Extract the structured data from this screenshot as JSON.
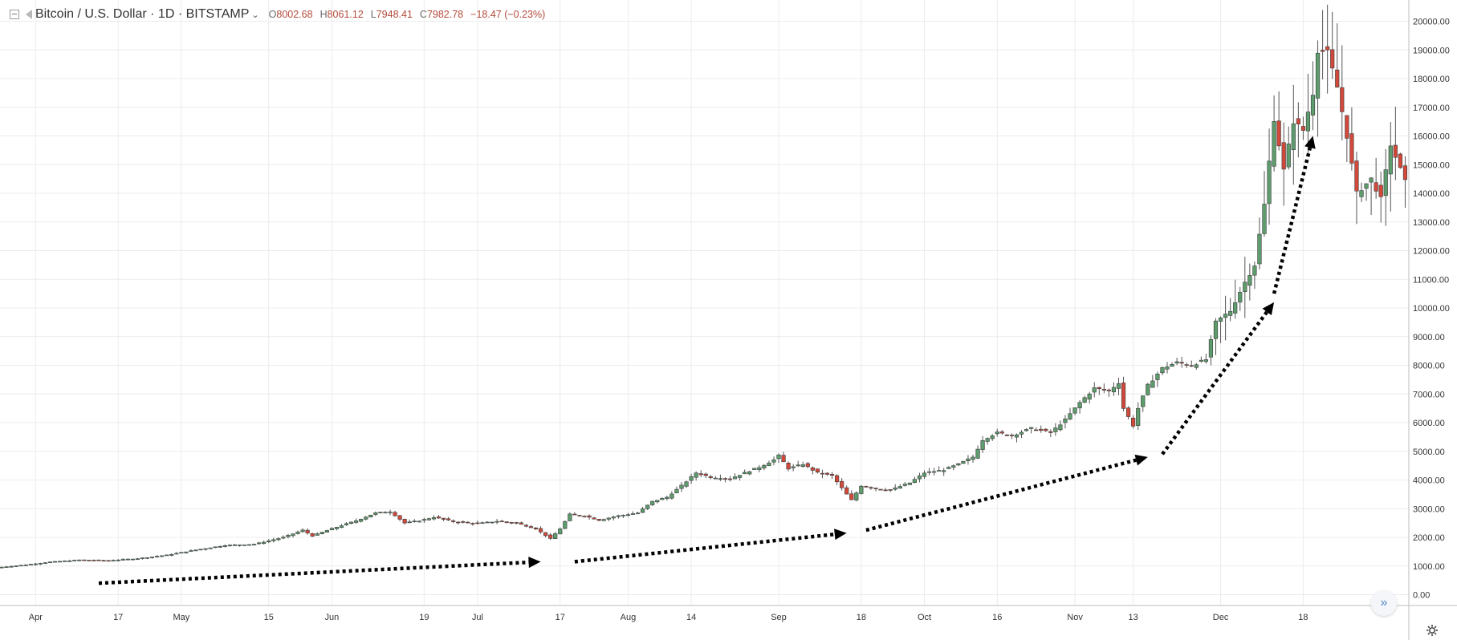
{
  "header": {
    "symbol_title": "Bitcoin / U.S. Dollar · 1D · BITSTAMP",
    "chevron": "⌄",
    "ohlc": [
      {
        "key": "O",
        "value": "8002.68"
      },
      {
        "key": "H",
        "value": "8061.12"
      },
      {
        "key": "L",
        "value": "7948.41"
      },
      {
        "key": "C",
        "value": "7982.78"
      }
    ],
    "change": "−18.47 (−0.23%)"
  },
  "icons": {
    "collapse": "collapse-icon",
    "flag": "flag-icon",
    "scroll": "scroll-to-latest-icon",
    "settings": "gear-icon"
  },
  "scroll_glyph": "»",
  "chart_data": {
    "type": "candlestick",
    "title": "Bitcoin / U.S. Dollar · 1D · BITSTAMP",
    "up_color": "#5d9c6c",
    "down_color": "#d2493b",
    "grid": true,
    "ylim": [
      0,
      20000
    ],
    "y_ticks": [
      "0.00",
      "1000.00",
      "2000.00",
      "3000.00",
      "4000.00",
      "5000.00",
      "6000.00",
      "7000.00",
      "8000.00",
      "9000.00",
      "10000.00",
      "11000.00",
      "12000.00",
      "13000.00",
      "14000.00",
      "15000.00",
      "16000.00",
      "17000.00",
      "18000.00",
      "19000.00",
      "20000.00"
    ],
    "x_ticks": [
      {
        "day": 7,
        "label": "Apr"
      },
      {
        "day": 24,
        "label": "17"
      },
      {
        "day": 37,
        "label": "May"
      },
      {
        "day": 55,
        "label": "15"
      },
      {
        "day": 68,
        "label": "Jun"
      },
      {
        "day": 87,
        "label": "19"
      },
      {
        "day": 98,
        "label": "Jul"
      },
      {
        "day": 115,
        "label": "17"
      },
      {
        "day": 129,
        "label": "Aug"
      },
      {
        "day": 142,
        "label": "14"
      },
      {
        "day": 160,
        "label": "Sep"
      },
      {
        "day": 177,
        "label": "18"
      },
      {
        "day": 190,
        "label": "Oct"
      },
      {
        "day": 205,
        "label": "16"
      },
      {
        "day": 221,
        "label": "Nov"
      },
      {
        "day": 233,
        "label": "13"
      },
      {
        "day": 251,
        "label": "Dec"
      },
      {
        "day": 268,
        "label": "18"
      }
    ],
    "closes": [
      [
        0,
        960
      ],
      [
        5,
        1040
      ],
      [
        10,
        1140
      ],
      [
        16,
        1210
      ],
      [
        22,
        1190
      ],
      [
        28,
        1260
      ],
      [
        34,
        1380
      ],
      [
        40,
        1560
      ],
      [
        46,
        1720
      ],
      [
        52,
        1760
      ],
      [
        58,
        2000
      ],
      [
        62,
        2250
      ],
      [
        64,
        2050
      ],
      [
        68,
        2300
      ],
      [
        73,
        2580
      ],
      [
        77,
        2850
      ],
      [
        80,
        2900
      ],
      [
        83,
        2500
      ],
      [
        86,
        2580
      ],
      [
        89,
        2700
      ],
      [
        93,
        2550
      ],
      [
        98,
        2480
      ],
      [
        102,
        2560
      ],
      [
        106,
        2500
      ],
      [
        110,
        2300
      ],
      [
        113,
        1950
      ],
      [
        115,
        2300
      ],
      [
        117,
        2800
      ],
      [
        120,
        2750
      ],
      [
        123,
        2600
      ],
      [
        127,
        2750
      ],
      [
        131,
        2850
      ],
      [
        134,
        3250
      ],
      [
        137,
        3400
      ],
      [
        140,
        3800
      ],
      [
        143,
        4250
      ],
      [
        146,
        4100
      ],
      [
        150,
        4050
      ],
      [
        153,
        4250
      ],
      [
        156,
        4450
      ],
      [
        159,
        4700
      ],
      [
        160,
        4850
      ],
      [
        162,
        4400
      ],
      [
        165,
        4550
      ],
      [
        168,
        4250
      ],
      [
        171,
        4150
      ],
      [
        174,
        3500
      ],
      [
        175,
        3300
      ],
      [
        177,
        3800
      ],
      [
        180,
        3700
      ],
      [
        183,
        3650
      ],
      [
        187,
        3900
      ],
      [
        190,
        4250
      ],
      [
        194,
        4350
      ],
      [
        197,
        4550
      ],
      [
        200,
        4800
      ],
      [
        202,
        5400
      ],
      [
        205,
        5650
      ],
      [
        208,
        5550
      ],
      [
        212,
        5800
      ],
      [
        216,
        5650
      ],
      [
        219,
        6100
      ],
      [
        222,
        6700
      ],
      [
        225,
        7200
      ],
      [
        228,
        7100
      ],
      [
        230,
        7400
      ],
      [
        231,
        6500
      ],
      [
        233,
        5900
      ],
      [
        234,
        6500
      ],
      [
        236,
        7300
      ],
      [
        239,
        7900
      ],
      [
        242,
        8100
      ],
      [
        245,
        8000
      ],
      [
        248,
        8200
      ],
      [
        250,
        9500
      ],
      [
        253,
        9900
      ],
      [
        256,
        10900
      ],
      [
        258,
        11500
      ],
      [
        260,
        13600
      ],
      [
        262,
        16600
      ],
      [
        264,
        14800
      ],
      [
        266,
        16500
      ],
      [
        268,
        16200
      ],
      [
        270,
        17500
      ],
      [
        271,
        19000
      ],
      [
        273,
        18900
      ],
      [
        275,
        17700
      ],
      [
        277,
        16000
      ],
      [
        279,
        14000
      ],
      [
        282,
        14500
      ],
      [
        284,
        13800
      ],
      [
        286,
        15700
      ],
      [
        289,
        14400
      ]
    ],
    "arrows": [
      {
        "from": [
          20,
          400
        ],
        "to": [
          111,
          1150
        ]
      },
      {
        "from": [
          118,
          1150
        ],
        "to": [
          174,
          2150
        ]
      },
      {
        "from": [
          178,
          2250
        ],
        "to": [
          236,
          4800
        ]
      },
      {
        "from": [
          239,
          4900
        ],
        "to": [
          262,
          10200
        ]
      },
      {
        "from": [
          262,
          10500
        ],
        "to": [
          270,
          16000
        ]
      }
    ]
  }
}
